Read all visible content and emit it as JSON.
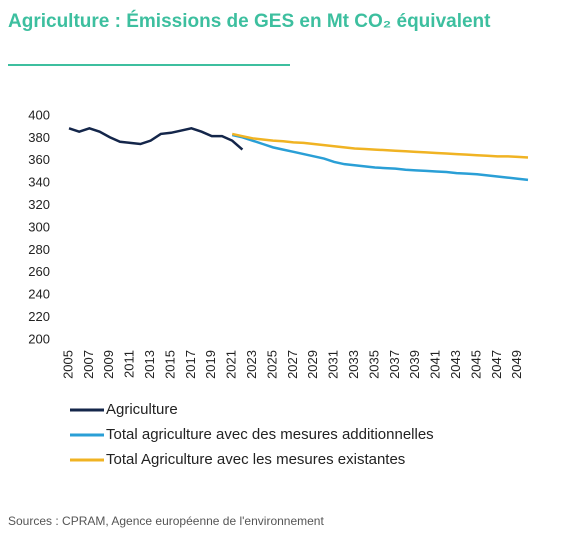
{
  "chart_data": {
    "type": "line",
    "title": "Agriculture : Émissions de GES en Mt CO₂ équivalent",
    "source": "Sources : CPRAM, Agence européenne de l'environnement",
    "x": [
      2005,
      2006,
      2007,
      2008,
      2009,
      2010,
      2011,
      2012,
      2013,
      2014,
      2015,
      2016,
      2017,
      2018,
      2019,
      2020,
      2021,
      2022,
      2023,
      2024,
      2025,
      2026,
      2027,
      2028,
      2029,
      2030,
      2031,
      2032,
      2033,
      2034,
      2035,
      2036,
      2037,
      2038,
      2039,
      2040,
      2041,
      2042,
      2043,
      2044,
      2045,
      2046,
      2047,
      2048,
      2049,
      2050
    ],
    "xlim": [
      2005,
      2050
    ],
    "xticks": [
      2005,
      2007,
      2009,
      2011,
      2013,
      2015,
      2017,
      2019,
      2021,
      2023,
      2025,
      2027,
      2029,
      2031,
      2033,
      2035,
      2037,
      2039,
      2041,
      2043,
      2045,
      2047,
      2049
    ],
    "ylim": [
      200,
      400
    ],
    "yticks": [
      200,
      220,
      240,
      260,
      280,
      300,
      320,
      340,
      360,
      380,
      400
    ],
    "grid": false,
    "series": [
      {
        "name": "Agriculture",
        "color": "#14264a",
        "values": [
          389,
          386,
          389,
          386,
          381,
          377,
          376,
          375,
          378,
          384,
          385,
          387,
          389,
          386,
          382,
          382,
          378,
          370,
          null,
          null,
          null,
          null,
          null,
          null,
          null,
          null,
          null,
          null,
          null,
          null,
          null,
          null,
          null,
          null,
          null,
          null,
          null,
          null,
          null,
          null,
          null,
          null,
          null,
          null,
          null,
          null
        ]
      },
      {
        "name": "Total agriculture avec des mesures additionnelles",
        "color": "#2a9fd6",
        "values": [
          null,
          null,
          null,
          null,
          null,
          null,
          null,
          null,
          null,
          null,
          null,
          null,
          null,
          null,
          null,
          null,
          383,
          381,
          378,
          375,
          372,
          370,
          368,
          366,
          364,
          362,
          359,
          357,
          356,
          355,
          354,
          353.5,
          353,
          352,
          351.5,
          351,
          350.5,
          350,
          349,
          348.5,
          348,
          347,
          346,
          345,
          344,
          343
        ]
      },
      {
        "name": "Total Agriculture avec les mesures existantes",
        "color": "#f0b323",
        "values": [
          null,
          null,
          null,
          null,
          null,
          null,
          null,
          null,
          null,
          null,
          null,
          null,
          null,
          null,
          null,
          null,
          384,
          382,
          380,
          379,
          378,
          377.5,
          376.5,
          376,
          375,
          374,
          373,
          372,
          371,
          370.5,
          370,
          369.5,
          369,
          368.5,
          368,
          367.5,
          367,
          366.5,
          366,
          365.5,
          365,
          364.5,
          364,
          364,
          363.5,
          363
        ]
      }
    ]
  }
}
